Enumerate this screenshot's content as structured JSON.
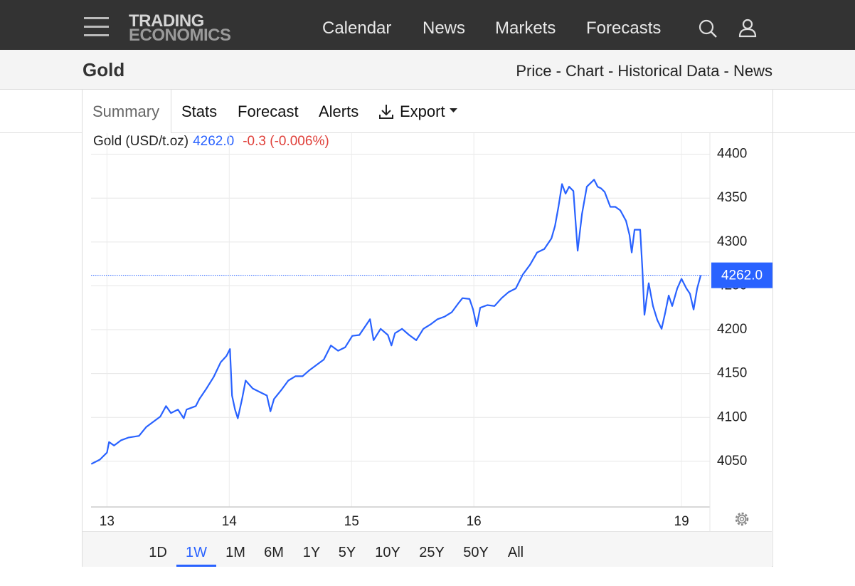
{
  "nav": {
    "logo_line1": "TRADING",
    "logo_line2": "ECONOMICS",
    "items": [
      "Calendar",
      "News",
      "Markets",
      "Forecasts"
    ]
  },
  "header": {
    "title": "Gold",
    "links": "Price - Chart - Historical Data - News"
  },
  "tabs": [
    "Summary",
    "Stats",
    "Forecast",
    "Alerts",
    "Export"
  ],
  "chart_data": {
    "type": "line",
    "title": "Gold (USD/t.oz)",
    "last": {
      "value": 4262,
      "label": "4262.0"
    },
    "change": "-0.3 (-0.006%)",
    "color": "#2962ff",
    "x": [
      -0.128,
      -0.058,
      0,
      0.017,
      0.058,
      0.116,
      0.174,
      0.262,
      0.32,
      0.378,
      0.436,
      0.483,
      0.523,
      0.581,
      0.628,
      0.651,
      0.727,
      0.756,
      0.814,
      0.872,
      0.93,
      0.977,
      1.006,
      1.023,
      1.047,
      1.07,
      1.105,
      1.134,
      1.192,
      1.25,
      1.308,
      1.337,
      1.366,
      1.424,
      1.483,
      1.541,
      1.599,
      1.657,
      1.715,
      1.773,
      1.831,
      1.89,
      1.948,
      2.006,
      2.064,
      2.122,
      2.151,
      2.18,
      2.238,
      2.297,
      2.326,
      2.355,
      2.413,
      2.471,
      2.529,
      2.587,
      2.645,
      2.703,
      2.762,
      2.82,
      2.878,
      2.907,
      2.965,
      2.994,
      3.023,
      3.052,
      3.11,
      3.169,
      3.227,
      3.285,
      3.343,
      3.401,
      3.459,
      3.517,
      3.576,
      3.634,
      3.663,
      3.692,
      3.721,
      3.75,
      3.779,
      3.814,
      3.849,
      3.884,
      3.924,
      3.983,
      4.012,
      4.041,
      4.07,
      4.116,
      4.157,
      4.198,
      4.244,
      4.273,
      4.291,
      4.314,
      4.36,
      4.378,
      4.395,
      4.43,
      4.465,
      4.5,
      4.535,
      4.564,
      4.593,
      4.622,
      4.663,
      4.698,
      4.738,
      4.767,
      4.797,
      4.826,
      4.855
    ],
    "values": [
      4047,
      4052,
      4060,
      4072,
      4068,
      4074,
      4077,
      4079,
      4089,
      4095,
      4101,
      4113,
      4105,
      4109,
      4099,
      4109,
      4113,
      4121,
      4133,
      4146,
      4163,
      4170,
      4178,
      4125,
      4109,
      4099,
      4121,
      4142,
      4133,
      4129,
      4125,
      4107,
      4121,
      4131,
      4142,
      4147,
      4147,
      4154,
      4160,
      4166,
      4182,
      4176,
      4180,
      4193,
      4194,
      4206,
      4212,
      4188,
      4201,
      4194,
      4182,
      4196,
      4201,
      4194,
      4188,
      4201,
      4206,
      4212,
      4215,
      4220,
      4231,
      4236,
      4235,
      4223,
      4204,
      4225,
      4228,
      4227,
      4236,
      4243,
      4247,
      4263,
      4274,
      4288,
      4292,
      4304,
      4318,
      4340,
      4366,
      4355,
      4363,
      4358,
      4290,
      4332,
      4363,
      4371,
      4363,
      4361,
      4357,
      4340,
      4340,
      4336,
      4324,
      4308,
      4288,
      4314,
      4314,
      4269,
      4217,
      4253,
      4227,
      4211,
      4201,
      4219,
      4239,
      4227,
      4247,
      4258,
      4247,
      4241,
      4223,
      4247,
      4262
    ],
    "xlim": [
      -0.13,
      4.93
    ],
    "ylim": [
      3998,
      4424
    ],
    "xticks": [
      {
        "value": 0,
        "label": "13"
      },
      {
        "value": 1,
        "label": "14"
      },
      {
        "value": 2,
        "label": "15"
      },
      {
        "value": 3,
        "label": "16"
      },
      {
        "value": 4.698,
        "label": "19"
      }
    ],
    "yticks": [
      4050,
      4100,
      4150,
      4200,
      4250,
      4300,
      4350,
      4400
    ],
    "grid": true
  },
  "ranges": [
    "1D",
    "1W",
    "1M",
    "6M",
    "1Y",
    "5Y",
    "10Y",
    "25Y",
    "50Y",
    "All"
  ],
  "selected_range": 1
}
